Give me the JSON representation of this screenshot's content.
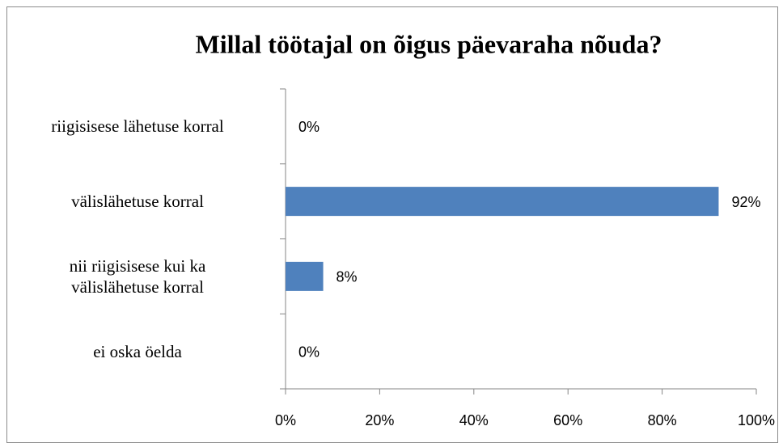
{
  "chart_data": {
    "type": "bar",
    "orientation": "horizontal",
    "title": "Millal töötajal on õigus päevaraha nõuda?",
    "categories": [
      "riigisisese lähetuse korral",
      "välislähetuse korral",
      "nii riigisisese kui ka\nvälislähetuse korral",
      "ei oska öelda"
    ],
    "values": [
      0,
      92,
      8,
      0
    ],
    "value_labels": [
      "0%",
      "92%",
      "8%",
      "0%"
    ],
    "color": "#4f81bd",
    "xlim": [
      0,
      100
    ],
    "xticks": [
      {
        "value": 0,
        "label": "0%"
      },
      {
        "value": 20,
        "label": "20%"
      },
      {
        "value": 40,
        "label": "40%"
      },
      {
        "value": 60,
        "label": "60%"
      },
      {
        "value": 80,
        "label": "80%"
      },
      {
        "value": 100,
        "label": "100%"
      }
    ],
    "grid": false
  }
}
